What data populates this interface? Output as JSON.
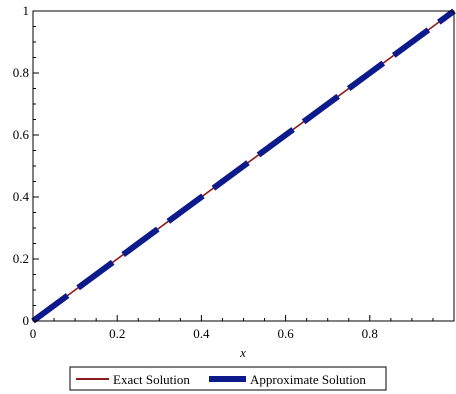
{
  "chart_data": {
    "type": "line",
    "title": "",
    "xlabel": "x",
    "ylabel": "",
    "xlim": [
      0,
      1
    ],
    "ylim": [
      0,
      1
    ],
    "xticks": [
      0,
      0.2,
      0.4,
      0.6,
      0.8
    ],
    "xtick_labels": [
      "0",
      "0.2",
      "0.4",
      "0.6",
      "0.8"
    ],
    "yticks": [
      0,
      0.2,
      0.4,
      0.6,
      0.8,
      1
    ],
    "ytick_labels": [
      "0",
      "0.2",
      "0.4",
      "0.6",
      "0.8",
      "1"
    ],
    "grid": false,
    "legend_position": "bottom",
    "series": [
      {
        "name": "Exact Solution",
        "color": "#8b1a1a",
        "style": "solid-thin",
        "x": [
          0,
          1
        ],
        "y": [
          0,
          1
        ]
      },
      {
        "name": "Approximate Solution",
        "color": "#0d1a8c",
        "style": "dashed-thick",
        "x": [
          0,
          0.1,
          0.2,
          0.3,
          0.4,
          0.5,
          0.6,
          0.7,
          0.8,
          0.9,
          1
        ],
        "y": [
          0,
          0.1,
          0.2,
          0.3,
          0.4,
          0.5,
          0.6,
          0.7,
          0.8,
          0.9,
          1
        ]
      }
    ]
  }
}
